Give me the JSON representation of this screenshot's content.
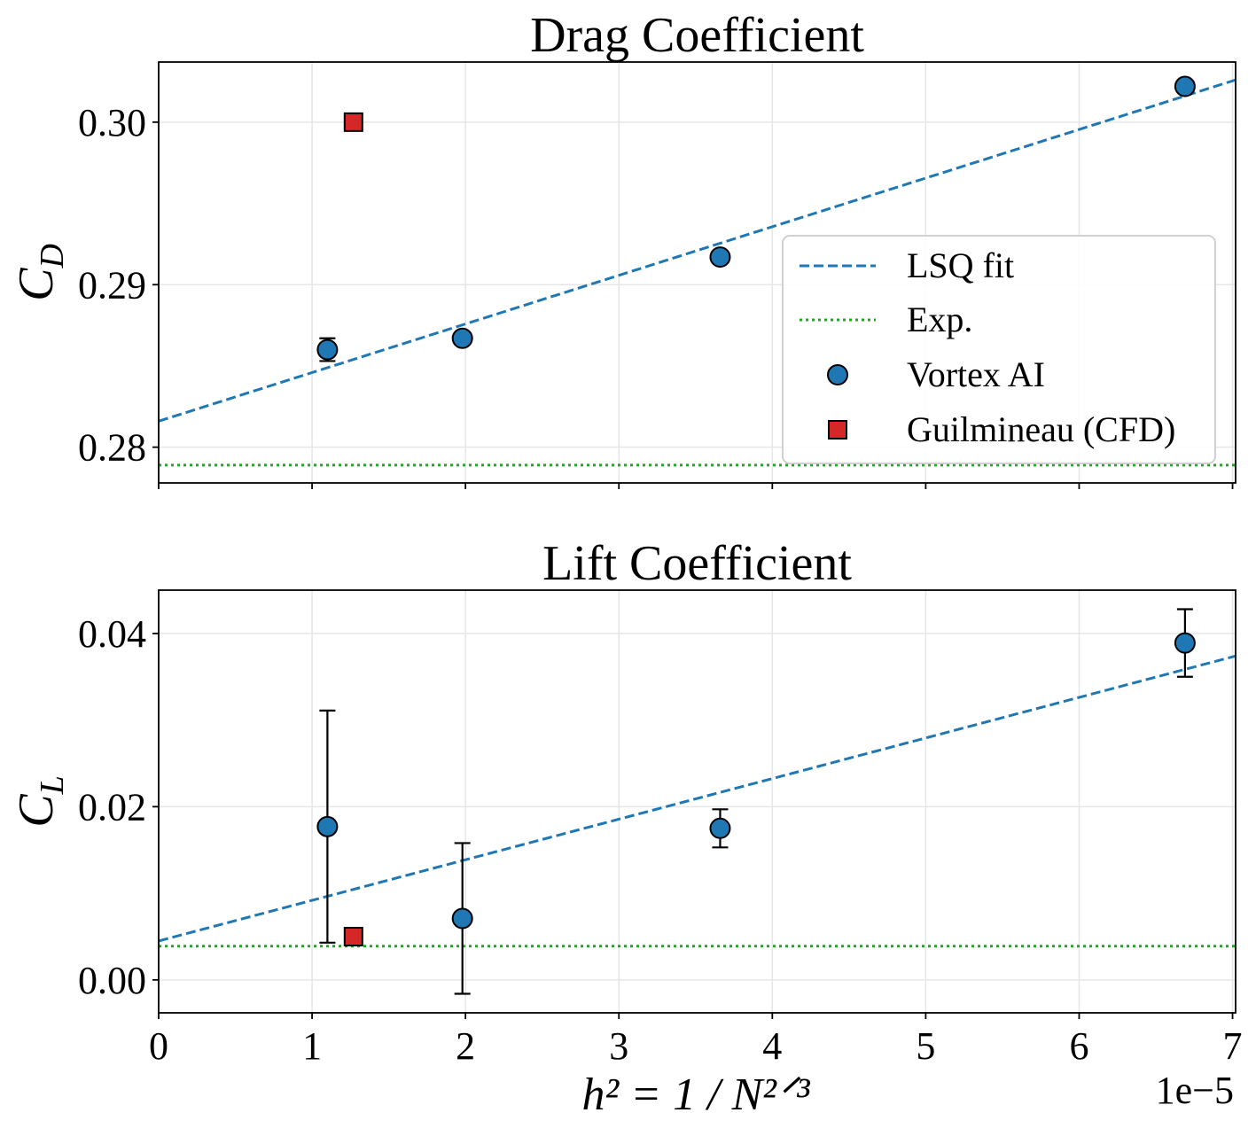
{
  "chart_data": [
    {
      "type": "scatter",
      "title": "Drag Coefficient",
      "ylabel_main": "C",
      "ylabel_sub": "D",
      "xlim": [
        0,
        7.02e-05
      ],
      "ylim": [
        0.2778,
        0.3037
      ],
      "xticks": [
        0,
        1e-05,
        2e-05,
        3e-05,
        4e-05,
        5e-05,
        6e-05,
        7e-05
      ],
      "show_xtick_labels": false,
      "yticks": [
        0.28,
        0.29,
        0.3
      ],
      "ytick_labels": [
        "0.28",
        "0.29",
        "0.30"
      ],
      "grid": true,
      "legend": {
        "position": "lower-right",
        "entries": [
          "LSQ fit",
          "Exp.",
          "Vortex AI",
          "Guilmineau (CFD)"
        ]
      },
      "series": [
        {
          "name": "LSQ fit",
          "kind": "line",
          "style": "dashed",
          "color": "#1f77b4",
          "x": [
            0,
            7.02e-05
          ],
          "y": [
            0.2816,
            0.3026
          ]
        },
        {
          "name": "Exp.",
          "kind": "hline",
          "style": "dotted",
          "color": "#2ca02c",
          "y": 0.2789
        },
        {
          "name": "Vortex AI",
          "kind": "errorbar",
          "color": "#1f77b4",
          "x": [
            1.1e-05,
            1.98e-05,
            3.66e-05,
            6.69e-05
          ],
          "y": [
            0.286,
            0.2867,
            0.2917,
            0.3022
          ],
          "err": [
            0.0007,
            0.0002,
            0.0001,
            0.0002
          ]
        },
        {
          "name": "Guilmineau (CFD)",
          "kind": "marker-square",
          "color": "#d62728",
          "x": [
            1.27e-05
          ],
          "y": [
            0.3
          ]
        }
      ]
    },
    {
      "type": "scatter",
      "title": "Lift Coefficient",
      "ylabel_main": "C",
      "ylabel_sub": "L",
      "xlim": [
        0,
        7.02e-05
      ],
      "ylim": [
        -0.0038,
        0.045
      ],
      "xticks": [
        0,
        1e-05,
        2e-05,
        3e-05,
        4e-05,
        5e-05,
        6e-05,
        7e-05
      ],
      "xtick_labels": [
        "0",
        "1",
        "2",
        "3",
        "4",
        "5",
        "6",
        "7"
      ],
      "show_xtick_labels": true,
      "x_offset_text": "1e−5",
      "xlabel": "h² = 1 / N²ᐟ³",
      "yticks": [
        0.0,
        0.02,
        0.04
      ],
      "ytick_labels": [
        "0.00",
        "0.02",
        "0.04"
      ],
      "grid": true,
      "series": [
        {
          "name": "LSQ fit",
          "kind": "line",
          "style": "dashed",
          "color": "#1f77b4",
          "x": [
            0,
            7.02e-05
          ],
          "y": [
            0.0045,
            0.0374
          ]
        },
        {
          "name": "Exp.",
          "kind": "hline",
          "style": "dotted",
          "color": "#2ca02c",
          "y": 0.0039
        },
        {
          "name": "Vortex AI",
          "kind": "errorbar",
          "color": "#1f77b4",
          "x": [
            1.1e-05,
            1.98e-05,
            3.66e-05,
            6.69e-05
          ],
          "y": [
            0.0177,
            0.0071,
            0.0175,
            0.0389
          ],
          "err": [
            0.0134,
            0.0087,
            0.0022,
            0.0039
          ]
        },
        {
          "name": "Guilmineau (CFD)",
          "kind": "marker-square",
          "color": "#d62728",
          "x": [
            1.27e-05
          ],
          "y": [
            0.005
          ]
        }
      ]
    }
  ]
}
